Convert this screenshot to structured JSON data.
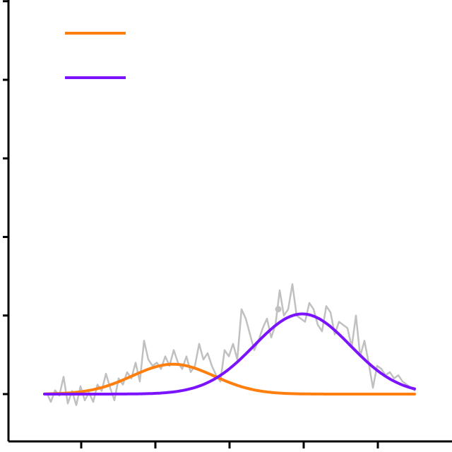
{
  "chart_data": {
    "type": "line",
    "title": "",
    "xlabel": "",
    "ylabel": "",
    "xlim": [
      0,
      610
    ],
    "ylim": [
      -15,
      135
    ],
    "grid": false,
    "legend": {
      "placement": "top-left",
      "entries": [
        "",
        ""
      ]
    },
    "colors": {
      "raw": "#c0c0c0",
      "peak1": "#ff7f0e",
      "peak2": "#7b13ff",
      "axis": "#000000"
    },
    "series": [
      {
        "kind": "raw",
        "x": [
          67,
          72,
          78,
          84,
          90,
          96,
          102,
          108,
          114,
          120,
          126,
          132,
          138,
          144,
          150,
          156,
          162,
          168,
          174,
          180,
          186,
          192,
          198,
          204,
          210,
          216,
          222,
          228,
          234,
          240,
          246,
          252,
          258,
          264,
          270,
          276,
          282,
          288,
          294,
          300,
          306,
          312,
          318,
          324,
          330,
          336,
          342,
          348,
          354,
          360,
          366,
          372,
          378,
          384,
          390,
          396,
          402,
          408,
          414,
          420,
          426,
          432,
          438,
          444,
          450,
          456,
          462,
          468,
          474,
          480,
          486,
          492,
          498,
          504,
          510,
          516,
          522,
          528,
          534,
          540,
          546,
          552,
          558,
          564,
          570,
          576,
          582,
          588
        ],
        "values": [
          0,
          -2.5,
          1.2,
          -0.5,
          5.5,
          -3,
          1,
          -3.5,
          2.5,
          -2,
          0.5,
          -2.5,
          3,
          1,
          6.5,
          2,
          -2,
          5,
          3,
          7,
          5,
          10,
          4,
          17,
          11,
          9,
          10,
          8,
          12,
          9,
          14,
          10,
          8,
          12,
          7,
          9,
          16,
          11,
          13,
          9,
          6,
          4,
          14,
          12,
          16,
          11,
          27,
          24,
          19,
          14,
          17,
          21,
          24,
          18,
          22,
          33,
          25,
          27,
          35,
          25,
          24,
          23,
          29,
          27,
          22,
          20,
          28,
          26,
          19,
          23,
          22,
          21,
          15,
          25,
          12,
          17,
          10,
          2,
          9,
          8,
          6,
          7,
          5,
          6,
          4,
          3,
          2,
          1
        ]
      },
      {
        "kind": "gaussian",
        "amplitude": 9.5,
        "center": 245,
        "sigma": 58,
        "x_start": 63,
        "x_end": 588
      },
      {
        "kind": "gaussian",
        "amplitude": 25.5,
        "center": 428,
        "sigma": 68,
        "x_start": 63,
        "x_end": 588
      }
    ],
    "y_ticks": [
      0,
      25,
      50,
      75,
      100,
      125
    ],
    "x_ticks": [
      115,
      220,
      325,
      430,
      535
    ],
    "highlight_point": {
      "x": 394,
      "y": 27
    }
  }
}
